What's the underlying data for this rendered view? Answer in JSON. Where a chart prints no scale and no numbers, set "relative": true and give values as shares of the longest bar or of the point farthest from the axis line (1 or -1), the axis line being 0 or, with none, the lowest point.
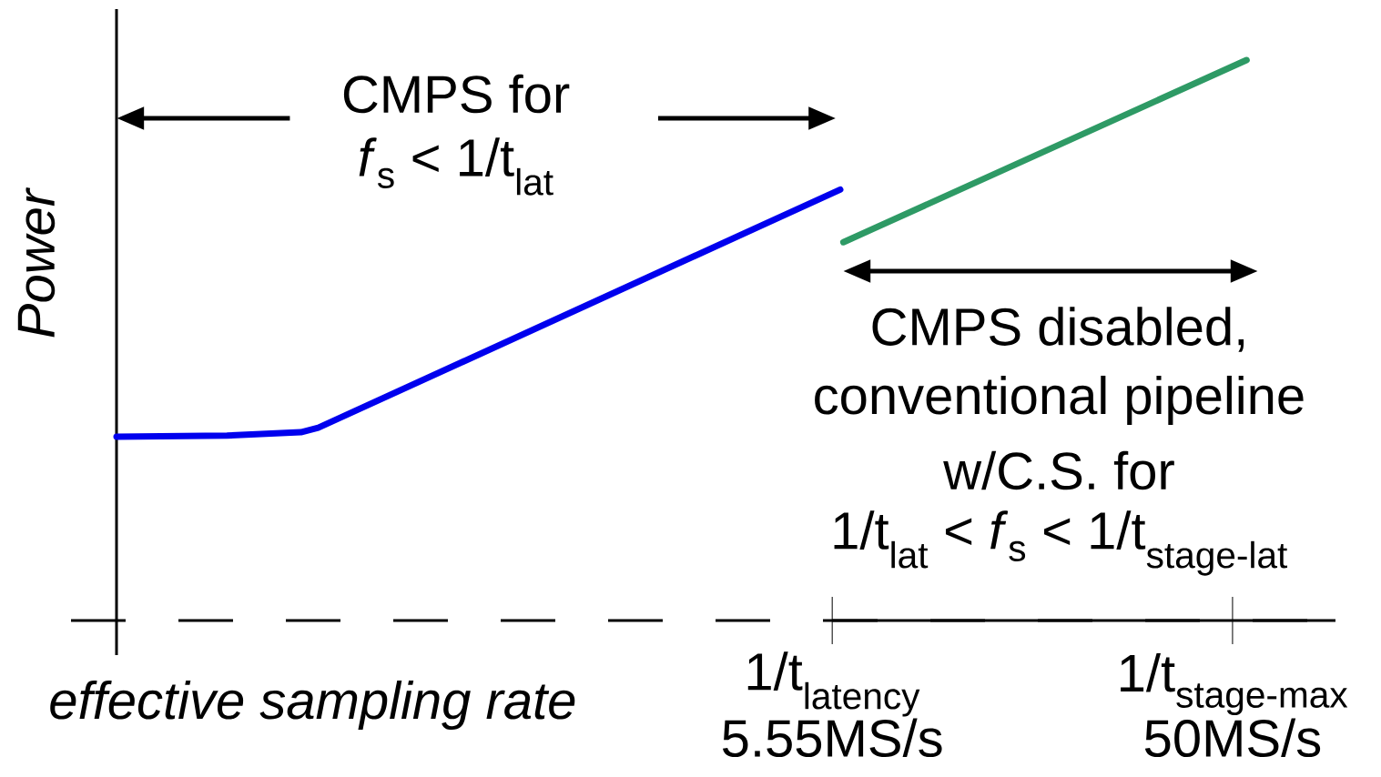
{
  "chart_data": {
    "type": "line",
    "relative": true,
    "marker": "none",
    "xlabel": "effective sampling rate",
    "ylabel": "Power",
    "log": "x",
    "xlim": [
      0.109,
      88
    ],
    "xticks": [
      {
        "value": 5.55,
        "label": "5.55MS/s"
      },
      {
        "value": 50,
        "label": "50MS/s"
      }
    ],
    "series": [
      {
        "color": "#0000ee",
        "x": [
          0.109,
          0.2,
          0.3,
          0.33,
          5.8
        ],
        "values": [
          0.328,
          0.33,
          0.336,
          0.344,
          0.769
        ]
      },
      {
        "color": "#2e9a65",
        "x": [
          5.9,
          54
        ],
        "values": [
          0.675,
          1
        ]
      }
    ],
    "annotations": [
      "CMPS for",
      "*f*$_{s}$ < 1/t$_{lat}$",
      "CMPS disabled,",
      "conventional pipeline",
      "w/C.S. for",
      "1/t$_{lat}$ < *f*$_{s}$ < 1/t$_{stage-lat}$",
      "1/t$_{latency}$",
      "1/t$_{stage-max}$"
    ]
  }
}
